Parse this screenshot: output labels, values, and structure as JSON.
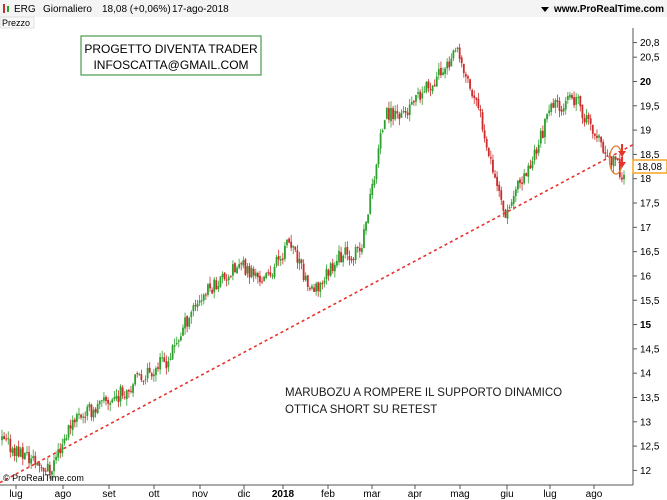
{
  "header": {
    "ticker": "ERG",
    "period": "Giornaliero",
    "price_change": "18,08 (+0,06%)",
    "date": "17-ago-2018",
    "site": "www.ProRealTime.com",
    "panel_label": "Prezzo",
    "watermark": "© ProRealTime.com"
  },
  "colors": {
    "up": "#2ca02c",
    "down": "#cc2b2b",
    "trendline": "#e8322b",
    "box_border": "#4a9a4a",
    "price_badge": "#f5a623"
  },
  "annotations": {
    "box_line1": "PROGETTO DIVENTA TRADER",
    "box_line2": "INFOSCATTA@GMAIL.COM",
    "note_line1": "MARUBOZU A ROMPERE IL SUPPORTO DINAMICO",
    "note_line2": "OTTICA SHORT SU RETEST"
  },
  "chart_data": {
    "type": "candlestick",
    "title": "ERG Giornaliero",
    "y_axis_label": "Prezzo",
    "ylim": [
      11.7,
      21.1
    ],
    "yticks": [
      "12",
      "12,5",
      "13",
      "13,5",
      "14",
      "14,5",
      "15",
      "15,5",
      "16",
      "16,5",
      "17",
      "17,5",
      "18",
      "18,5",
      "19",
      "19,5",
      "20",
      "20,5",
      "20,8"
    ],
    "bold_yticks": [
      "15",
      "20"
    ],
    "last_price": "18,08",
    "x_months": [
      "lug",
      "ago",
      "set",
      "ott",
      "nov",
      "dic",
      "2018",
      "feb",
      "mar",
      "apr",
      "mag",
      "giu",
      "lug",
      "ago"
    ],
    "bold_xmonths": [
      "2018"
    ],
    "price_path": [
      {
        "x": "lug 2017",
        "y": 12.6
      },
      {
        "x": "ago 2017",
        "y": 12.3
      },
      {
        "x": "ago 2017",
        "y": 12.0
      },
      {
        "x": "set 2017",
        "y": 13.1
      },
      {
        "x": "set 2017",
        "y": 13.3
      },
      {
        "x": "ott 2017",
        "y": 13.6
      },
      {
        "x": "ott 2017",
        "y": 14.0
      },
      {
        "x": "nov 2017",
        "y": 14.3
      },
      {
        "x": "nov 2017",
        "y": 15.4
      },
      {
        "x": "dic 2017",
        "y": 15.9
      },
      {
        "x": "dic 2017",
        "y": 16.2
      },
      {
        "x": "gen 2018",
        "y": 15.9
      },
      {
        "x": "gen 2018",
        "y": 16.7
      },
      {
        "x": "feb 2018",
        "y": 15.6
      },
      {
        "x": "feb 2018",
        "y": 16.4
      },
      {
        "x": "mar 2018",
        "y": 16.5
      },
      {
        "x": "mar 2018",
        "y": 19.3
      },
      {
        "x": "apr 2018",
        "y": 19.4
      },
      {
        "x": "apr 2018",
        "y": 20.0
      },
      {
        "x": "mag 2018",
        "y": 20.6
      },
      {
        "x": "mag 2018",
        "y": 19.3
      },
      {
        "x": "giu 2018",
        "y": 17.3
      },
      {
        "x": "giu 2018",
        "y": 18.2
      },
      {
        "x": "lug 2018",
        "y": 19.5
      },
      {
        "x": "lug 2018",
        "y": 19.6
      },
      {
        "x": "ago 2018",
        "y": 18.7
      },
      {
        "x": "ago 2018",
        "y": 18.08
      }
    ],
    "trendline": {
      "start": {
        "x": "ago 2017",
        "y": 11.75
      },
      "end": {
        "x": "ago 2018",
        "y": 18.7
      },
      "style": "dashed"
    },
    "grid": false
  }
}
